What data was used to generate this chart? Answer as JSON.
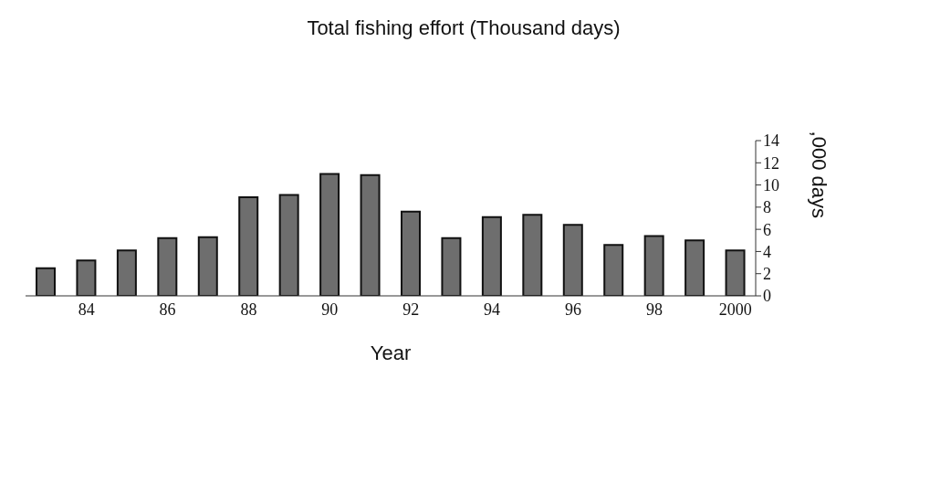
{
  "chart_data": {
    "type": "bar",
    "title": "Total fishing effort (Thousand days)",
    "xlabel": "Year",
    "ylabel": ",000 days",
    "categories": [
      null,
      "84",
      null,
      "86",
      null,
      "88",
      null,
      "90",
      null,
      "92",
      null,
      "94",
      null,
      "96",
      null,
      "98",
      null,
      "2000"
    ],
    "values": [
      2.5,
      3.2,
      4.1,
      5.2,
      5.3,
      8.9,
      9.1,
      11.0,
      10.9,
      7.6,
      5.2,
      7.1,
      7.3,
      6.4,
      4.6,
      5.4,
      5.0,
      4.1
    ],
    "color": "#6e6e6e",
    "ylim": [
      0,
      14
    ],
    "yticks": [
      0,
      2,
      4,
      6,
      8,
      10,
      12,
      14
    ],
    "grid": false,
    "legend": false
  }
}
